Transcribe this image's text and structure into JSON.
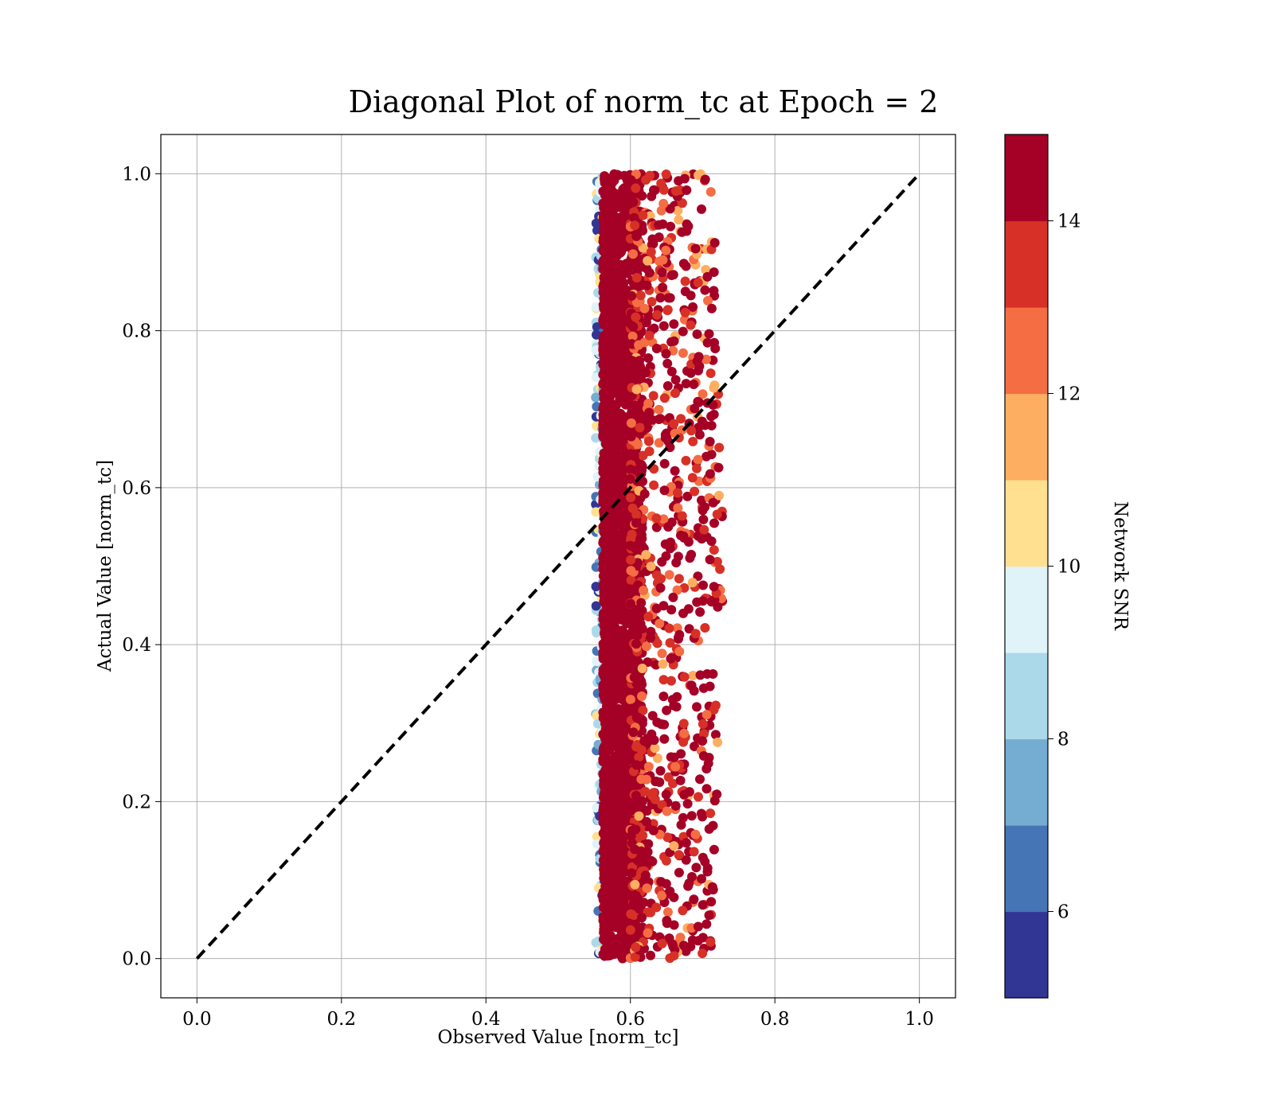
{
  "chart_data": {
    "type": "scatter",
    "title": "Diagonal Plot of norm_tc at Epoch = 2",
    "xlabel": "Observed Value [norm_tc]",
    "ylabel": "Actual Value [norm_tc]",
    "xlim": [
      -0.05,
      1.05
    ],
    "ylim": [
      -0.05,
      1.05
    ],
    "x_ticks": [
      "0.0",
      "0.2",
      "0.4",
      "0.6",
      "0.8",
      "1.0"
    ],
    "y_ticks": [
      "0.0",
      "0.2",
      "0.4",
      "0.6",
      "0.8",
      "1.0"
    ],
    "grid": true,
    "reference_line": {
      "from": [
        0,
        0
      ],
      "to": [
        1,
        1
      ],
      "style": "dashed",
      "color": "#000000"
    },
    "point_cloud": {
      "x_center": 0.59,
      "x_core_range": [
        0.555,
        0.64
      ],
      "x_full_range": [
        0.535,
        0.72
      ],
      "y_range": [
        0.0,
        1.0
      ],
      "dominant_color": "#a50026"
    },
    "colorbar": {
      "label": "Network SNR",
      "range": [
        5,
        15
      ],
      "ticks": [
        "6",
        "8",
        "10",
        "12",
        "14"
      ],
      "colors": [
        "#313695",
        "#4575b4",
        "#74add1",
        "#abd9e9",
        "#e0f3f8",
        "#fee090",
        "#fdae61",
        "#f46d43",
        "#d73027",
        "#a50026"
      ]
    }
  }
}
